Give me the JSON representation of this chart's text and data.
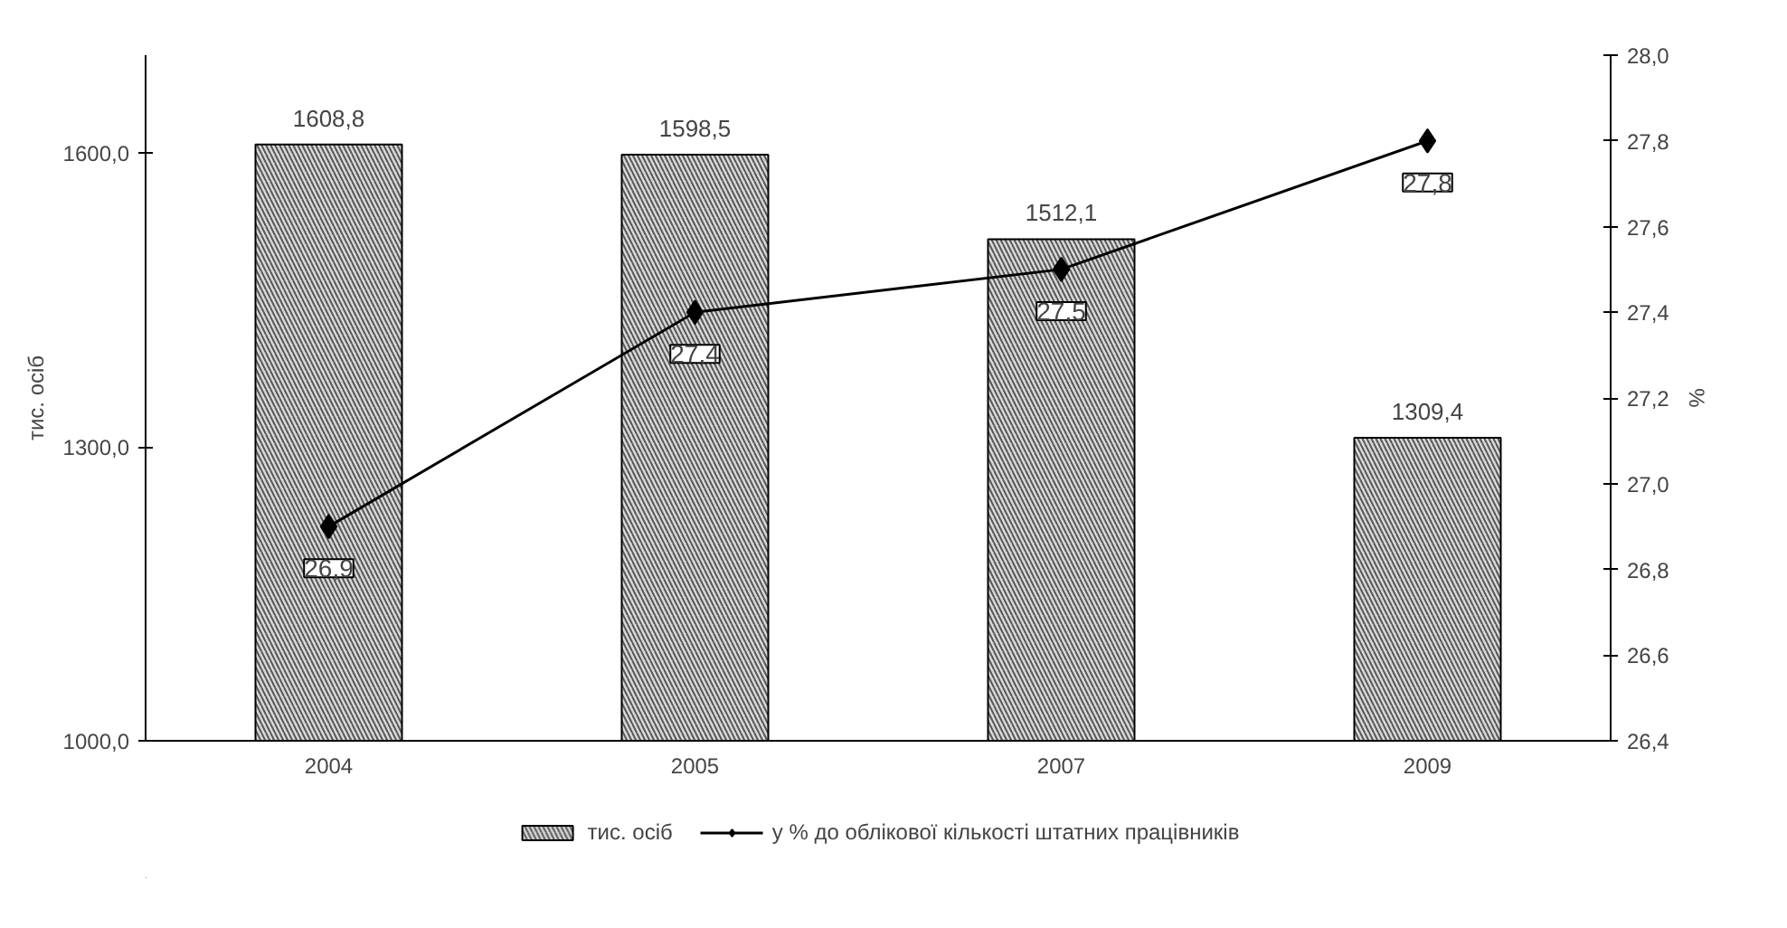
{
  "chart_data": {
    "type": "bar",
    "categories": [
      "2004",
      "2005",
      "2007",
      "2009"
    ],
    "ylabel": "тис. осіб",
    "y2label": "%",
    "ylim": [
      1000,
      1700
    ],
    "yticks": [
      {
        "value": 1000,
        "label": "1000,0"
      },
      {
        "value": 1300,
        "label": "1300,0"
      },
      {
        "value": 1600,
        "label": "1600,0"
      }
    ],
    "y2lim": [
      26.4,
      28.0
    ],
    "y2ticks": [
      {
        "value": 26.4,
        "label": "26,4"
      },
      {
        "value": 26.6,
        "label": "26,6"
      },
      {
        "value": 26.8,
        "label": "26,8"
      },
      {
        "value": 27.0,
        "label": "27,0"
      },
      {
        "value": 27.2,
        "label": "27,2"
      },
      {
        "value": 27.4,
        "label": "27,4"
      },
      {
        "value": 27.6,
        "label": "27,6"
      },
      {
        "value": 27.8,
        "label": "27,8"
      },
      {
        "value": 28.0,
        "label": "28,0"
      }
    ],
    "series": [
      {
        "name": "тис. осіб",
        "color": "#d9d9d9",
        "values": [
          1608.8,
          1598.5,
          1512.1,
          1309.4
        ],
        "value_labels": [
          "1608,8",
          "1598,5",
          "1512,1",
          "1309,4"
        ]
      },
      {
        "name": "у % до облікової кількості штатних працівників",
        "type": "line",
        "axis": "y2",
        "color": "#000000",
        "marker": "diamond",
        "values": [
          26.9,
          27.4,
          27.5,
          27.8
        ],
        "value_labels": [
          "26,9",
          "27,4",
          "27,5",
          "27,8"
        ]
      }
    ],
    "grid": false,
    "legend": "bottom"
  }
}
